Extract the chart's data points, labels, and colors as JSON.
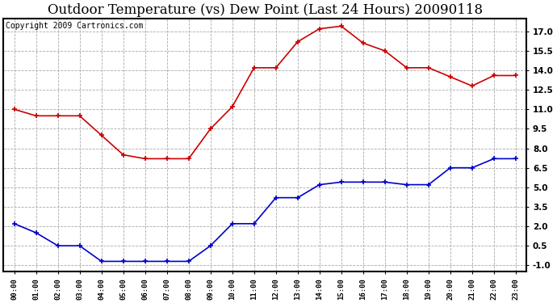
{
  "title": "Outdoor Temperature (vs) Dew Point (Last 24 Hours) 20090118",
  "copyright": "Copyright 2009 Cartronics.com",
  "x_labels": [
    "00:00",
    "01:00",
    "02:00",
    "03:00",
    "04:00",
    "05:00",
    "06:00",
    "07:00",
    "08:00",
    "09:00",
    "10:00",
    "11:00",
    "12:00",
    "13:00",
    "14:00",
    "15:00",
    "16:00",
    "17:00",
    "18:00",
    "19:00",
    "20:00",
    "21:00",
    "22:00",
    "23:00"
  ],
  "temp_data": [
    11.0,
    10.5,
    10.5,
    10.5,
    9.0,
    7.5,
    7.2,
    7.2,
    7.2,
    9.5,
    11.2,
    14.2,
    14.2,
    16.2,
    17.2,
    17.4,
    16.1,
    15.5,
    14.2,
    14.2,
    13.5,
    12.8,
    13.6,
    13.6
  ],
  "dew_data": [
    2.2,
    1.5,
    0.5,
    0.5,
    -0.7,
    -0.7,
    -0.7,
    -0.7,
    -0.7,
    0.5,
    2.2,
    2.2,
    4.2,
    4.2,
    5.2,
    5.4,
    5.4,
    5.4,
    5.2,
    5.2,
    6.5,
    6.5,
    7.2,
    7.2
  ],
  "temp_color": "#cc0000",
  "dew_color": "#0000cc",
  "ylim": [
    -1.5,
    18.0
  ],
  "yticks": [
    -1.0,
    0.5,
    2.0,
    3.5,
    5.0,
    6.5,
    8.0,
    9.5,
    11.0,
    12.5,
    14.0,
    15.5,
    17.0
  ],
  "background_color": "#ffffff",
  "plot_bg_color": "#ffffff",
  "grid_color": "#aaaaaa",
  "title_fontsize": 12,
  "copyright_fontsize": 7
}
